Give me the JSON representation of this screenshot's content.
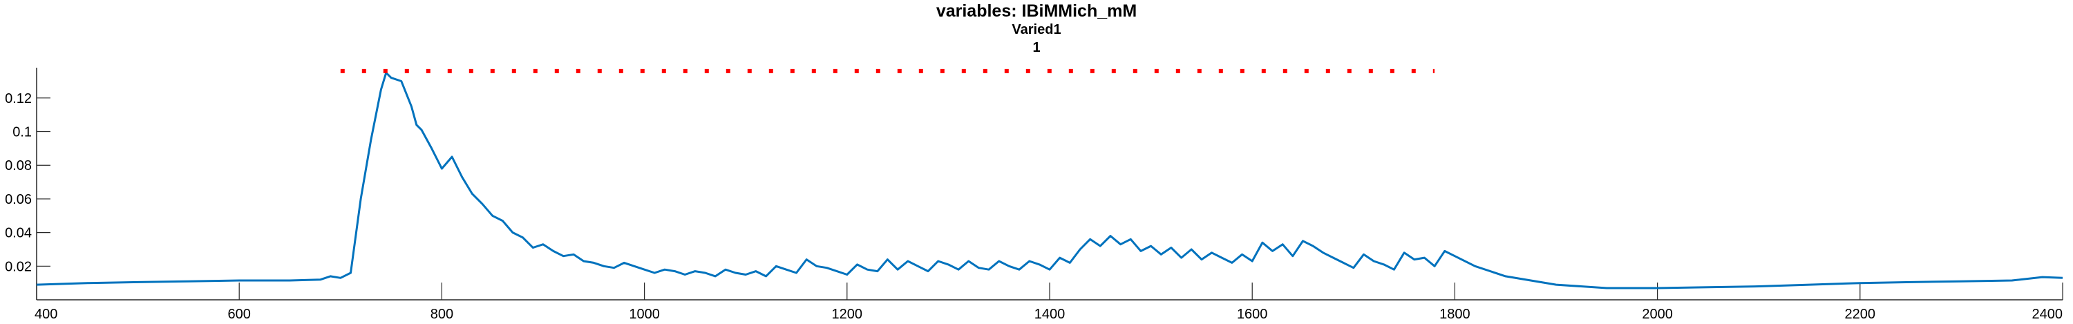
{
  "chart_data": {
    "type": "line",
    "title": "variables: IBiMMich_mM",
    "subtitle_lines": [
      "Varied1",
      "1"
    ],
    "xlabel": "",
    "ylabel": "",
    "xlim": [
      400,
      2400
    ],
    "ylim": [
      0,
      0.138
    ],
    "xticks": [
      400,
      600,
      800,
      1000,
      1200,
      1400,
      1600,
      1800,
      2000,
      2200,
      2400
    ],
    "xtick_labels": [
      "400",
      "600",
      "800",
      "1000",
      "1200",
      "1400",
      "1600",
      "1800",
      "2000",
      "2200",
      "2400"
    ],
    "yticks": [
      0.02,
      0.04,
      0.06,
      0.08,
      0.1,
      0.12
    ],
    "ytick_labels": [
      "0.02",
      "0.04",
      "0.06",
      "0.08",
      "0.1",
      "0.12"
    ],
    "grid": false,
    "series": [
      {
        "color": "#0072bd",
        "style": "solid",
        "x": [
          400,
          450,
          500,
          550,
          600,
          650,
          680,
          690,
          700,
          710,
          720,
          730,
          740,
          745,
          750,
          760,
          770,
          775,
          780,
          790,
          800,
          810,
          820,
          830,
          840,
          850,
          860,
          870,
          880,
          890,
          900,
          910,
          920,
          930,
          940,
          950,
          960,
          970,
          980,
          990,
          1000,
          1010,
          1020,
          1030,
          1040,
          1050,
          1060,
          1070,
          1080,
          1090,
          1100,
          1110,
          1120,
          1130,
          1140,
          1150,
          1160,
          1170,
          1180,
          1190,
          1200,
          1210,
          1220,
          1230,
          1240,
          1250,
          1260,
          1270,
          1280,
          1290,
          1300,
          1310,
          1320,
          1330,
          1340,
          1350,
          1360,
          1370,
          1380,
          1390,
          1400,
          1410,
          1420,
          1430,
          1440,
          1450,
          1460,
          1470,
          1480,
          1490,
          1500,
          1510,
          1520,
          1530,
          1540,
          1550,
          1560,
          1570,
          1580,
          1590,
          1600,
          1610,
          1620,
          1630,
          1640,
          1650,
          1660,
          1670,
          1680,
          1690,
          1700,
          1710,
          1720,
          1730,
          1740,
          1750,
          1760,
          1770,
          1780,
          1790,
          1800,
          1820,
          1850,
          1900,
          1950,
          2000,
          2050,
          2100,
          2150,
          2200,
          2250,
          2300,
          2350,
          2380,
          2400
        ],
        "y": [
          0.009,
          0.01,
          0.0105,
          0.011,
          0.0115,
          0.0115,
          0.012,
          0.014,
          0.013,
          0.016,
          0.06,
          0.095,
          0.125,
          0.135,
          0.132,
          0.13,
          0.115,
          0.104,
          0.101,
          0.09,
          0.078,
          0.085,
          0.073,
          0.063,
          0.057,
          0.05,
          0.047,
          0.04,
          0.037,
          0.031,
          0.033,
          0.029,
          0.026,
          0.027,
          0.023,
          0.022,
          0.02,
          0.019,
          0.022,
          0.02,
          0.018,
          0.016,
          0.018,
          0.017,
          0.015,
          0.017,
          0.016,
          0.014,
          0.018,
          0.016,
          0.015,
          0.017,
          0.014,
          0.02,
          0.018,
          0.016,
          0.024,
          0.02,
          0.019,
          0.017,
          0.015,
          0.021,
          0.018,
          0.017,
          0.024,
          0.018,
          0.023,
          0.02,
          0.017,
          0.023,
          0.021,
          0.018,
          0.023,
          0.019,
          0.018,
          0.023,
          0.02,
          0.018,
          0.023,
          0.021,
          0.018,
          0.025,
          0.022,
          0.03,
          0.036,
          0.032,
          0.038,
          0.033,
          0.036,
          0.029,
          0.032,
          0.027,
          0.031,
          0.025,
          0.03,
          0.024,
          0.028,
          0.025,
          0.022,
          0.027,
          0.023,
          0.034,
          0.029,
          0.033,
          0.026,
          0.035,
          0.032,
          0.028,
          0.025,
          0.022,
          0.019,
          0.027,
          0.023,
          0.021,
          0.018,
          0.028,
          0.024,
          0.025,
          0.02,
          0.029,
          0.026,
          0.02,
          0.014,
          0.009,
          0.007,
          0.007,
          0.0075,
          0.008,
          0.009,
          0.01,
          0.0105,
          0.011,
          0.0115,
          0.0135,
          0.013
        ]
      },
      {
        "color": "#ff0000",
        "style": "dotted",
        "x": [
          700,
          1780
        ],
        "y": [
          0.136,
          0.136
        ]
      }
    ]
  }
}
